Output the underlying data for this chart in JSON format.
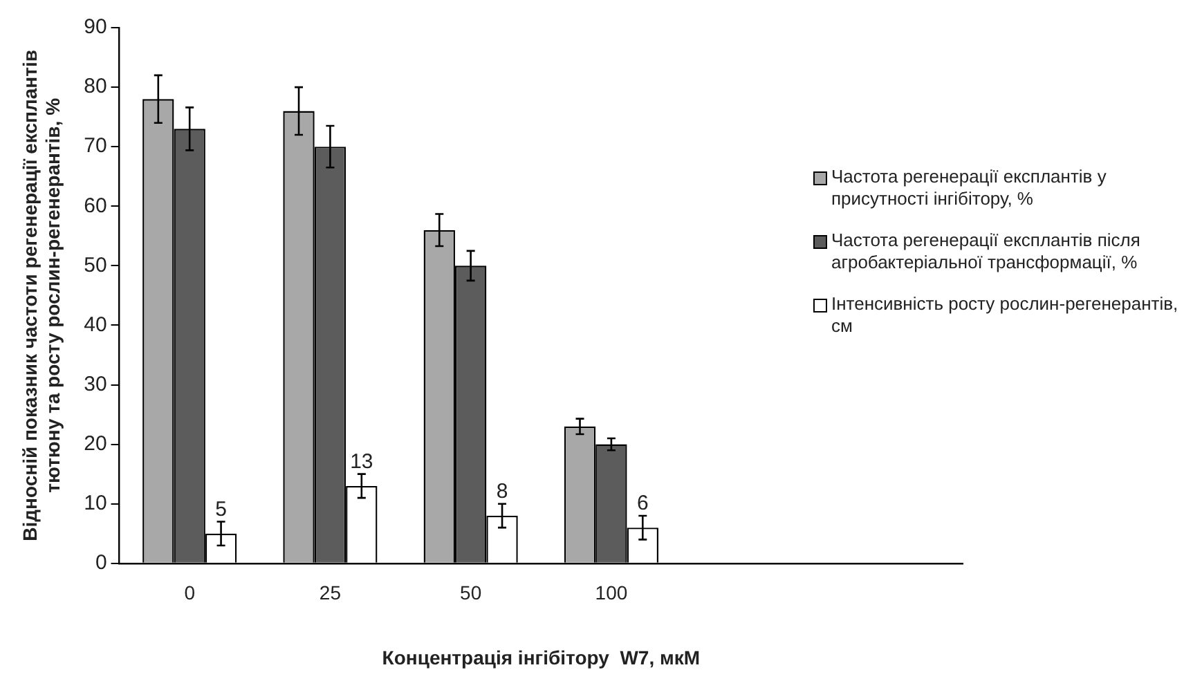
{
  "chart_data": {
    "type": "bar",
    "xlabel": "Концентрація інгібітору  W7, мкМ",
    "ylabel": "Відносній показник частоти регенерації експлантів\nтютюну та росту рослин-регенерантів, %",
    "categories": [
      "0",
      "25",
      "50",
      "100",
      null,
      null
    ],
    "series": [
      {
        "name": "Частота регенерації експлантів  у присутності інгібітору, %",
        "color": "#a8a8a8",
        "values": [
          78,
          76,
          56,
          23,
          null,
          null
        ],
        "errors": [
          4,
          4,
          2.7,
          1.3,
          null,
          null
        ]
      },
      {
        "name": "Частота регенерації експлантів  після агробактеріальної трансформації, %",
        "color": "#5c5c5c",
        "values": [
          73,
          70,
          50,
          20,
          null,
          null
        ],
        "errors": [
          3.6,
          3.5,
          2.5,
          1,
          null,
          null
        ]
      },
      {
        "name": "Інтенсивність росту рослин-регенерантів, см",
        "color": "#ffffff",
        "values": [
          5,
          13,
          8,
          6,
          null,
          null
        ],
        "errors": [
          2,
          2,
          2,
          2,
          null,
          null
        ],
        "value_labels": [
          "5",
          "13",
          "8",
          "6",
          null,
          null
        ]
      }
    ],
    "ylim": [
      0,
      90
    ],
    "yticks": [
      0,
      10,
      20,
      30,
      40,
      50,
      60,
      70,
      80,
      90
    ],
    "grid": false,
    "legend": "right"
  }
}
